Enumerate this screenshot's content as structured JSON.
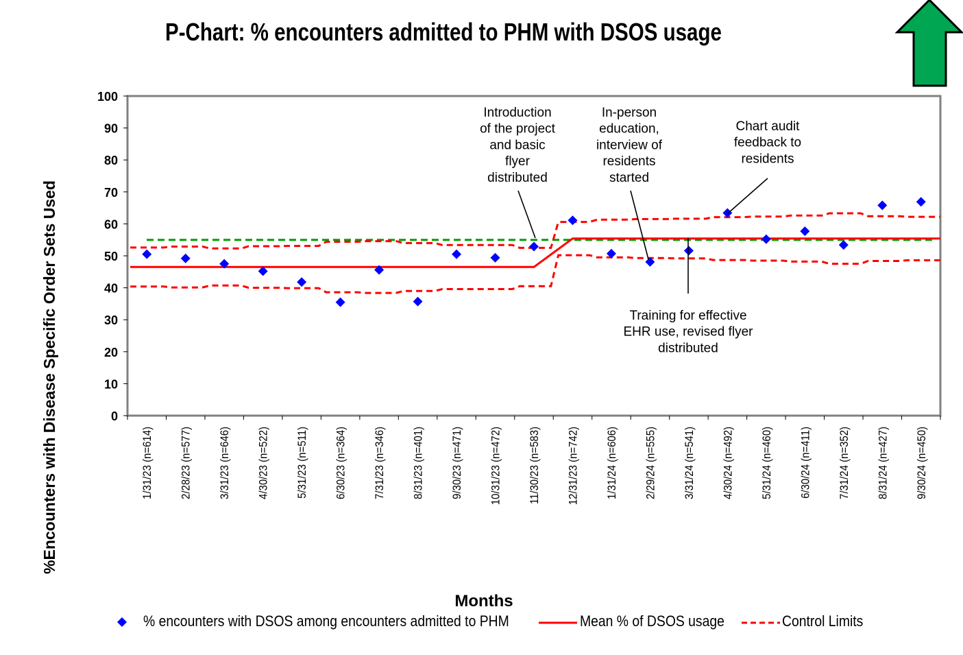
{
  "chart_data": {
    "type": "line",
    "title": "P-Chart: % encounters admitted to PHM with DSOS usage",
    "xlabel": "Months",
    "ylabel": "%Encounters with Disease Specific Order Sets Used",
    "ylim": [
      0,
      100
    ],
    "yticks": [
      0,
      10,
      20,
      30,
      40,
      50,
      60,
      70,
      80,
      90,
      100
    ],
    "categories": [
      "1/31/23 (n=614)",
      "2/28/23 (n=577)",
      "3/31/23 (n=646)",
      "4/30/23 (n=522)",
      "5/31/23 (n=511)",
      "6/30/23 (n=364)",
      "7/31/23 (n=346)",
      "8/31/23 (n=401)",
      "9/30/23 (n=471)",
      "10/31/23 (n=472)",
      "11/30/23 (n=583)",
      "12/31/23 (n=742)",
      "1/31/24 (n=606)",
      "2/29/24 (n=555)",
      "3/31/24 (n=541)",
      "4/30/24 (n=492)",
      "5/31/24 (n=460)",
      "6/30/24 (n=411)",
      "7/31/24 (n=352)",
      "8/31/24 (n=427)",
      "9/30/24 (n=450)"
    ],
    "series": [
      {
        "name": "% encounters with DSOS among encounters admitted to PHM",
        "style": "diamond-markers",
        "color": "#0000ff",
        "values": [
          50.5,
          49.2,
          47.5,
          45.2,
          41.8,
          35.5,
          45.6,
          35.7,
          50.5,
          49.4,
          52.9,
          61.1,
          50.7,
          48.1,
          51.6,
          63.4,
          55.2,
          57.7,
          53.4,
          65.8,
          66.9
        ]
      },
      {
        "name": "Mean % of DSOS usage",
        "style": "solid",
        "color": "#ff0000",
        "values": [
          46.5,
          46.5,
          46.5,
          46.5,
          46.5,
          46.5,
          46.5,
          46.5,
          46.5,
          46.5,
          46.5,
          55.4,
          55.4,
          55.4,
          55.4,
          55.4,
          55.4,
          55.4,
          55.4,
          55.4,
          55.4
        ]
      },
      {
        "name": "Control Limits",
        "style": "dashed",
        "color": "#ff0000",
        "upper": [
          52.6,
          52.9,
          52.3,
          53.0,
          53.1,
          54.4,
          54.6,
          54.0,
          53.4,
          53.4,
          52.5,
          60.6,
          61.3,
          61.5,
          61.6,
          62.1,
          62.3,
          62.6,
          63.3,
          62.4,
          62.2
        ],
        "lower": [
          40.4,
          40.1,
          40.7,
          40.0,
          39.9,
          38.6,
          38.4,
          39.0,
          39.6,
          39.6,
          40.5,
          50.2,
          49.5,
          49.3,
          49.2,
          48.7,
          48.5,
          48.2,
          47.5,
          48.4,
          48.6
        ]
      },
      {
        "style": "dashed",
        "color": "#00a000",
        "values": [
          55,
          55,
          55,
          55,
          55,
          55,
          55,
          55,
          55,
          55,
          55,
          55,
          55,
          55,
          55,
          55,
          55,
          55,
          55,
          55,
          55
        ]
      }
    ],
    "annotations": [
      {
        "lines": [
          "Introduction",
          "of the project",
          "and basic",
          "flyer",
          "distributed"
        ],
        "points_to_index": 10
      },
      {
        "lines": [
          "In-person",
          "education,",
          "interview of",
          "residents",
          "started"
        ],
        "points_to_index": 13
      },
      {
        "lines": [
          "Chart audit",
          "feedback to",
          "residents"
        ],
        "points_to_index": 15
      },
      {
        "lines": [
          "Training for effective",
          "EHR use, revised flyer",
          "distributed"
        ],
        "points_to_index": 14
      }
    ],
    "legend_position": "bottom",
    "grid": false
  },
  "indicator": {
    "icon": "up-arrow-icon",
    "color": "#00a651",
    "outline": "#000000"
  },
  "legend": {
    "item1": "% encounters with DSOS among encounters admitted to PHM",
    "item2": "Mean % of DSOS usage",
    "item3": "Control Limits"
  }
}
